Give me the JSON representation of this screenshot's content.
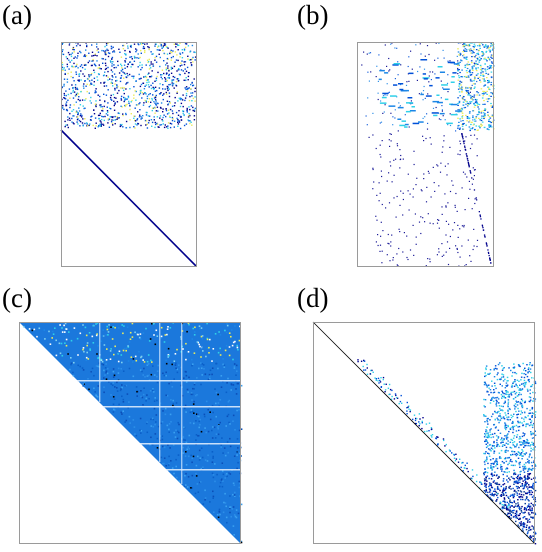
{
  "panels": {
    "a": {
      "label": "(a)"
    },
    "b": {
      "label": "(b)"
    },
    "c": {
      "label": "(c)"
    },
    "d": {
      "label": "(d)"
    }
  },
  "colors": {
    "frame": "#9a9a9a",
    "navy": "#00008c",
    "blue": "#0050d8",
    "mid_blue": "#1c86e6",
    "cyan": "#2fd0e8",
    "yellow": "#ecec5a",
    "black": "#000000"
  }
}
